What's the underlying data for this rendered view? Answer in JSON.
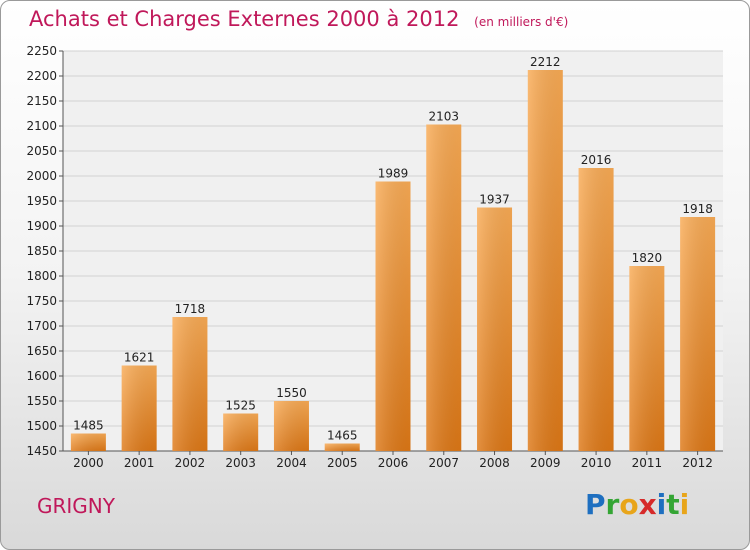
{
  "header": {
    "title": "Achats et Charges Externes 2000 à 2012",
    "unit": "(en milliers d'€)"
  },
  "footer": {
    "commune": "GRIGNY",
    "logo": "Proxiti"
  },
  "colors": {
    "title": "#c0185a",
    "bar_light": "#f8a852",
    "bar_dark": "#e07a18",
    "grid": "#cfcfcf"
  },
  "chart_data": {
    "type": "bar",
    "title": "Achats et Charges Externes 2000 à 2012",
    "subtitle": "(en milliers d'€)",
    "xlabel": "",
    "ylabel": "",
    "categories": [
      "2000",
      "2001",
      "2002",
      "2003",
      "2004",
      "2005",
      "2006",
      "2007",
      "2008",
      "2009",
      "2010",
      "2011",
      "2012"
    ],
    "values": [
      1485,
      1621,
      1718,
      1525,
      1550,
      1465,
      1989,
      2103,
      1937,
      2212,
      2016,
      1820,
      1918
    ],
    "ylim": [
      1450,
      2250
    ],
    "yticks": [
      1450,
      1500,
      1550,
      1600,
      1650,
      1700,
      1750,
      1800,
      1850,
      1900,
      1950,
      2000,
      2050,
      2100,
      2150,
      2200,
      2250
    ],
    "grid": true,
    "data_labels": true
  }
}
